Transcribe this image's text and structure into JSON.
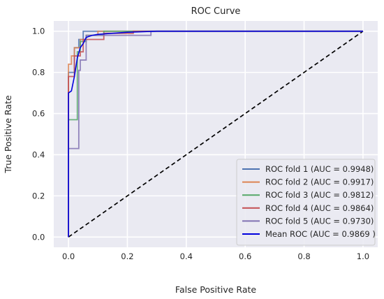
{
  "chart_data": {
    "type": "line",
    "title": "ROC Curve",
    "xlabel": "False Positive Rate",
    "ylabel": "True Positive Rate",
    "xlim": [
      -0.05,
      1.05
    ],
    "ylim": [
      -0.05,
      1.05
    ],
    "xticks": [
      "0.0",
      "0.2",
      "0.4",
      "0.6",
      "0.8",
      "1.0"
    ],
    "yticks": [
      "0.0",
      "0.2",
      "0.4",
      "0.6",
      "0.8",
      "1.0"
    ],
    "grid": true,
    "legend_position": "lower-right",
    "series": [
      {
        "name": "ROC fold 1 (AUC = 0.9948)",
        "color": "#4c72b0",
        "x": [
          0.0,
          0.0,
          0.02,
          0.02,
          0.035,
          0.035,
          0.05,
          0.05,
          1.0
        ],
        "y": [
          0.0,
          0.8,
          0.8,
          0.92,
          0.92,
          0.96,
          0.96,
          1.0,
          1.0
        ]
      },
      {
        "name": "ROC fold 2 (AUC = 0.9917)",
        "color": "#dd8452",
        "x": [
          0.0,
          0.0,
          0.01,
          0.01,
          0.02,
          0.02,
          0.04,
          0.04,
          0.06,
          0.06,
          0.1,
          0.1,
          1.0
        ],
        "y": [
          0.0,
          0.84,
          0.84,
          0.88,
          0.88,
          0.92,
          0.92,
          0.96,
          0.96,
          0.98,
          0.98,
          1.0,
          1.0
        ]
      },
      {
        "name": "ROC fold 3 (AUC = 0.9812)",
        "color": "#55a868",
        "x": [
          0.0,
          0.0,
          0.03,
          0.03,
          0.04,
          0.04,
          0.06,
          0.06,
          0.12,
          0.12,
          1.0
        ],
        "y": [
          0.0,
          0.57,
          0.57,
          0.9,
          0.9,
          0.95,
          0.95,
          0.98,
          0.98,
          1.0,
          1.0
        ]
      },
      {
        "name": "ROC fold 4 (AUC = 0.9864)",
        "color": "#c44e52",
        "x": [
          0.0,
          0.0,
          0.02,
          0.02,
          0.04,
          0.04,
          0.05,
          0.05,
          0.12,
          0.12,
          0.22,
          0.22,
          1.0
        ],
        "y": [
          0.0,
          0.78,
          0.78,
          0.88,
          0.88,
          0.9,
          0.9,
          0.96,
          0.96,
          0.99,
          0.99,
          1.0,
          1.0
        ]
      },
      {
        "name": "ROC fold 5 (AUC = 0.9730)",
        "color": "#8172b3",
        "x": [
          0.0,
          0.0,
          0.035,
          0.035,
          0.04,
          0.04,
          0.06,
          0.06,
          0.28,
          0.28,
          1.0
        ],
        "y": [
          0.0,
          0.43,
          0.43,
          0.81,
          0.81,
          0.86,
          0.86,
          0.98,
          0.98,
          1.0,
          1.0
        ]
      },
      {
        "name": "Mean ROC (AUC = 0.9869 )",
        "color": "#0000dd",
        "x": [
          0.0,
          0.0,
          0.01,
          0.02,
          0.03,
          0.04,
          0.05,
          0.06,
          0.08,
          0.1,
          0.15,
          0.2,
          0.3,
          0.4,
          0.6,
          1.0
        ],
        "y": [
          0.0,
          0.7,
          0.71,
          0.78,
          0.87,
          0.92,
          0.94,
          0.97,
          0.98,
          0.985,
          0.99,
          0.995,
          1.0,
          1.0,
          1.0,
          1.0
        ]
      }
    ],
    "reference_line": {
      "x": [
        0.0,
        1.0
      ],
      "y": [
        0.0,
        1.0
      ],
      "color": "#000000",
      "style": "dashed"
    }
  }
}
